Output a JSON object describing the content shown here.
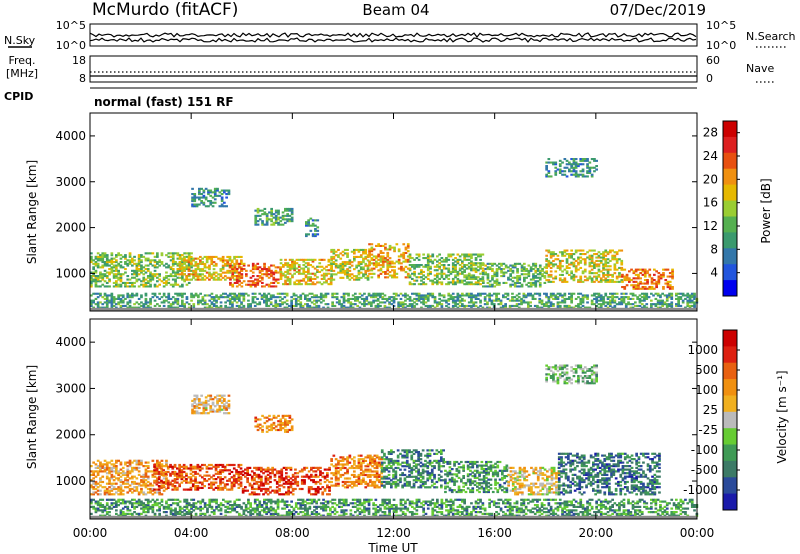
{
  "header": {
    "station": "McMurdo (fitACF)",
    "beam": "Beam 04",
    "date": "07/Dec/2019"
  },
  "noise_panel": {
    "left_label": "N.Sky",
    "right_label": "N.Search",
    "left_ticks": [
      "10^5",
      "10^0"
    ],
    "right_ticks": [
      "10^5",
      "10^0"
    ]
  },
  "freq_panel": {
    "left_label_1": "Freq.",
    "left_label_2": "[MHz]",
    "right_label": "Nave",
    "left_ticks": [
      "18",
      "8"
    ],
    "right_ticks": [
      "60",
      "0"
    ]
  },
  "cpid": {
    "label": "CPID",
    "value": "normal (fast) 151 RF"
  },
  "chart_data": [
    {
      "type": "heatmap",
      "name": "power",
      "ylabel": "Slant Range [km]",
      "xlabel": "Time UT",
      "x_ticks": [
        "00:00",
        "04:00",
        "08:00",
        "12:00",
        "16:00",
        "20:00",
        "00:00"
      ],
      "y_ticks": [
        1000,
        2000,
        3000,
        4000
      ],
      "ylim": [
        180,
        4500
      ],
      "xlim_hours": [
        0,
        24
      ],
      "colorbar": {
        "label": "Power [dB]",
        "ticks": [
          "4",
          "8",
          "12",
          "16",
          "20",
          "24",
          "28"
        ],
        "range": [
          0,
          30
        ],
        "colors": [
          "#0000ee",
          "#2255dd",
          "#3377aa",
          "#3b9a6e",
          "#55b050",
          "#9acd32",
          "#e6b800",
          "#f09010",
          "#e85010",
          "#dd2020",
          "#cc0000"
        ]
      },
      "echo_regions": [
        {
          "t0": 0.0,
          "t1": 4.0,
          "r0": 700,
          "r1": 1450,
          "level": 0.45
        },
        {
          "t0": 3.5,
          "t1": 6.0,
          "r0": 850,
          "r1": 1350,
          "level": 0.6
        },
        {
          "t0": 5.5,
          "t1": 7.5,
          "r0": 700,
          "r1": 1200,
          "level": 0.75
        },
        {
          "t0": 7.5,
          "t1": 9.5,
          "r0": 750,
          "r1": 1300,
          "level": 0.6
        },
        {
          "t0": 9.5,
          "t1": 11.0,
          "r0": 850,
          "r1": 1500,
          "level": 0.55
        },
        {
          "t0": 11.0,
          "t1": 12.6,
          "r0": 900,
          "r1": 1650,
          "level": 0.65
        },
        {
          "t0": 12.6,
          "t1": 15.5,
          "r0": 750,
          "r1": 1400,
          "level": 0.45
        },
        {
          "t0": 15.5,
          "t1": 18.0,
          "r0": 700,
          "r1": 1200,
          "level": 0.4
        },
        {
          "t0": 18.0,
          "t1": 21.0,
          "r0": 800,
          "r1": 1500,
          "level": 0.55
        },
        {
          "t0": 21.0,
          "t1": 23.0,
          "r0": 650,
          "r1": 1100,
          "level": 0.7
        },
        {
          "t0": 0.0,
          "t1": 24.0,
          "r0": 200,
          "r1": 550,
          "level": 0.35
        },
        {
          "t0": 4.0,
          "t1": 5.5,
          "r0": 2450,
          "r1": 2850,
          "level": 0.3
        },
        {
          "t0": 6.5,
          "t1": 8.0,
          "r0": 2050,
          "r1": 2400,
          "level": 0.35
        },
        {
          "t0": 8.5,
          "t1": 9.0,
          "r0": 1800,
          "r1": 2200,
          "level": 0.3
        },
        {
          "t0": 18.0,
          "t1": 20.0,
          "r0": 3100,
          "r1": 3500,
          "level": 0.3
        }
      ]
    },
    {
      "type": "heatmap",
      "name": "velocity",
      "ylabel": "Slant Range [km]",
      "xlabel": "Time UT",
      "x_ticks": [
        "00:00",
        "04:00",
        "08:00",
        "12:00",
        "16:00",
        "20:00",
        "00:00"
      ],
      "y_ticks": [
        1000,
        2000,
        3000,
        4000
      ],
      "ylim": [
        180,
        4500
      ],
      "xlim_hours": [
        0,
        24
      ],
      "colorbar": {
        "label": "Velocity [m s⁻¹]",
        "ticks": [
          "1000",
          "500",
          "100",
          "25",
          "-25",
          "-100",
          "-500",
          "-1000"
        ],
        "colors": [
          "#1a1aaa",
          "#2a4a9a",
          "#3c7a66",
          "#3f9a55",
          "#66cc33",
          "#bbbbbb",
          "#f0b020",
          "#f09010",
          "#e86010",
          "#dd2010",
          "#cc0000"
        ]
      },
      "echo_regions": [
        {
          "t0": 0.0,
          "t1": 3.0,
          "r0": 700,
          "r1": 1450,
          "level": 0.65
        },
        {
          "t0": 2.5,
          "t1": 6.0,
          "r0": 800,
          "r1": 1350,
          "level": 0.82
        },
        {
          "t0": 6.0,
          "t1": 9.5,
          "r0": 700,
          "r1": 1300,
          "level": 0.85
        },
        {
          "t0": 9.5,
          "t1": 11.5,
          "r0": 850,
          "r1": 1550,
          "level": 0.7
        },
        {
          "t0": 11.5,
          "t1": 14.0,
          "r0": 850,
          "r1": 1650,
          "level": 0.25
        },
        {
          "t0": 14.0,
          "t1": 16.5,
          "r0": 750,
          "r1": 1400,
          "level": 0.3
        },
        {
          "t0": 16.5,
          "t1": 18.5,
          "r0": 700,
          "r1": 1300,
          "level": 0.55
        },
        {
          "t0": 18.5,
          "t1": 22.5,
          "r0": 700,
          "r1": 1600,
          "level": 0.22
        },
        {
          "t0": 0.0,
          "t1": 24.0,
          "r0": 200,
          "r1": 600,
          "level": 0.3
        },
        {
          "t0": 4.0,
          "t1": 5.5,
          "r0": 2450,
          "r1": 2850,
          "level": 0.6
        },
        {
          "t0": 6.5,
          "t1": 8.0,
          "r0": 2050,
          "r1": 2400,
          "level": 0.7
        },
        {
          "t0": 18.0,
          "t1": 20.0,
          "r0": 3100,
          "r1": 3500,
          "level": 0.4
        }
      ]
    }
  ]
}
